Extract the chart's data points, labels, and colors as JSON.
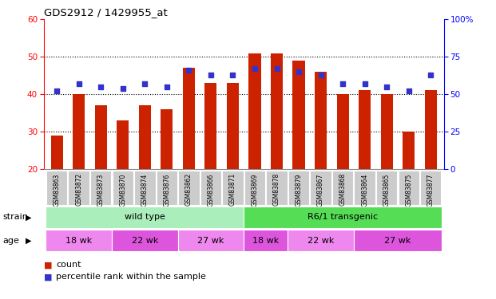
{
  "title": "GDS2912 / 1429955_at",
  "samples": [
    "GSM83863",
    "GSM83872",
    "GSM83873",
    "GSM83870",
    "GSM83874",
    "GSM83876",
    "GSM83862",
    "GSM83866",
    "GSM83871",
    "GSM83869",
    "GSM83878",
    "GSM83879",
    "GSM83867",
    "GSM83868",
    "GSM83864",
    "GSM83865",
    "GSM83875",
    "GSM83877"
  ],
  "counts": [
    29,
    40,
    37,
    33,
    37,
    36,
    47,
    43,
    43,
    51,
    51,
    49,
    46,
    40,
    41,
    40,
    30,
    41
  ],
  "percentiles": [
    52,
    57,
    55,
    54,
    57,
    55,
    66,
    63,
    63,
    67,
    67,
    65,
    63,
    57,
    57,
    55,
    52,
    63
  ],
  "ymin": 20,
  "ymax": 60,
  "yticks_left": [
    20,
    30,
    40,
    50,
    60
  ],
  "yticks_right": [
    0,
    25,
    50,
    75,
    100
  ],
  "bar_color": "#cc2200",
  "dot_color": "#3333cc",
  "strain_labels": [
    {
      "label": "wild type",
      "start": 0,
      "end": 9,
      "color": "#aaeebb"
    },
    {
      "label": "R6/1 transgenic",
      "start": 9,
      "end": 18,
      "color": "#55dd55"
    }
  ],
  "age_groups": [
    {
      "label": "18 wk",
      "start": 0,
      "end": 3,
      "color": "#ee88ee"
    },
    {
      "label": "22 wk",
      "start": 3,
      "end": 6,
      "color": "#dd55dd"
    },
    {
      "label": "27 wk",
      "start": 6,
      "end": 9,
      "color": "#ee88ee"
    },
    {
      "label": "18 wk",
      "start": 9,
      "end": 11,
      "color": "#dd55dd"
    },
    {
      "label": "22 wk",
      "start": 11,
      "end": 14,
      "color": "#ee88ee"
    },
    {
      "label": "27 wk",
      "start": 14,
      "end": 18,
      "color": "#dd55dd"
    }
  ],
  "legend_count_label": "count",
  "legend_pct_label": "percentile rank within the sample",
  "strain_row_label": "strain",
  "age_row_label": "age"
}
